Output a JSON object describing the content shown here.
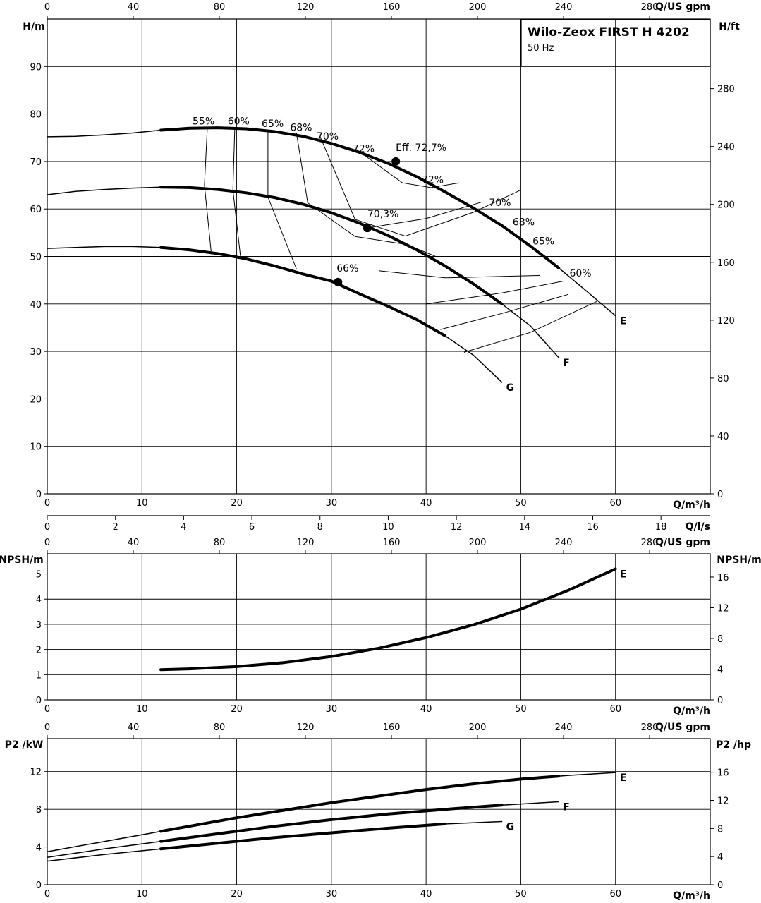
{
  "header": {
    "title": "Wilo-Zeox FIRST H 4202",
    "subtitle": "50 Hz"
  },
  "axes": {
    "q_m3h_label": "Q/m³/h",
    "q_ls_label": "Q/l/s",
    "q_usgpm_label": "Q/US gpm",
    "q_m3h_ticks": [
      "0",
      "10",
      "20",
      "30",
      "40",
      "50",
      "60"
    ],
    "q_ls_ticks": [
      "0",
      "2",
      "4",
      "6",
      "8",
      "10",
      "12",
      "14",
      "16",
      "18"
    ],
    "q_usgpm_ticks": [
      "0",
      "40",
      "80",
      "120",
      "160",
      "200",
      "240",
      "280"
    ]
  },
  "chart_data": [
    {
      "type": "line",
      "name": "head",
      "ylabel": "H/m",
      "y2label": "H/ft",
      "xlim": [
        0,
        70
      ],
      "ylim": [
        0,
        100
      ],
      "yticks": [
        0,
        10,
        20,
        30,
        40,
        50,
        60,
        70,
        80,
        90
      ],
      "y2ticks": [
        0,
        40,
        80,
        120,
        160,
        200,
        240,
        280
      ],
      "series": [
        {
          "name": "E",
          "x": [
            0,
            3,
            6,
            9,
            12,
            15,
            18,
            21,
            24,
            27,
            30,
            33,
            36,
            39,
            42,
            45,
            48,
            51,
            54,
            57,
            60
          ],
          "y": [
            75.2,
            75.3,
            75.6,
            76.0,
            76.6,
            77.0,
            77.1,
            76.9,
            76.3,
            75.3,
            73.8,
            71.9,
            69.6,
            66.8,
            63.6,
            60.2,
            56.5,
            52.2,
            47.6,
            42.6,
            37.5
          ]
        },
        {
          "name": "F",
          "x": [
            0,
            3,
            6,
            9,
            12,
            15,
            18,
            21,
            24,
            27,
            30,
            33,
            36,
            39,
            42,
            45,
            48,
            51,
            54
          ],
          "y": [
            63.0,
            63.7,
            64.1,
            64.4,
            64.6,
            64.5,
            64.1,
            63.4,
            62.4,
            61.0,
            59.2,
            57.0,
            54.4,
            51.4,
            48.0,
            44.2,
            40.0,
            35.4,
            28.7
          ]
        },
        {
          "name": "G",
          "x": [
            0,
            3,
            6,
            9,
            12,
            15,
            18,
            21,
            24,
            27,
            30,
            33,
            36,
            39,
            42,
            45,
            48
          ],
          "y": [
            51.7,
            51.9,
            52.1,
            52.1,
            51.9,
            51.4,
            50.6,
            49.5,
            48.0,
            46.3,
            44.8,
            42.1,
            39.5,
            36.7,
            33.3,
            29.2,
            23.5
          ]
        }
      ],
      "operating_points": [
        {
          "label": "Eff. 72,7%",
          "x": 36.8,
          "y": 70.0
        },
        {
          "label": "70,3%",
          "x": 33.8,
          "y": 56.0
        },
        {
          "label": "66%",
          "x": 30.7,
          "y": 44.6
        }
      ],
      "efficiency_labels": [
        "55%",
        "60%",
        "65%",
        "68%",
        "70%",
        "72%",
        "72%",
        "70%",
        "68%",
        "65%",
        "60%"
      ],
      "curve_labels": [
        "E",
        "F",
        "G"
      ]
    },
    {
      "type": "line",
      "name": "npsh",
      "ylabel": "NPSH/m",
      "y2label": "NPSH/m",
      "xlim": [
        0,
        70
      ],
      "ylim": [
        0,
        5.8
      ],
      "yticks": [
        0,
        1,
        2,
        3,
        4,
        5
      ],
      "y2ticks": [
        0,
        4,
        8,
        12,
        16
      ],
      "series": [
        {
          "name": "E",
          "x": [
            12,
            15,
            20,
            25,
            30,
            35,
            40,
            45,
            50,
            55,
            60
          ],
          "y": [
            1.2,
            1.23,
            1.32,
            1.48,
            1.72,
            2.05,
            2.47,
            2.98,
            3.6,
            4.35,
            5.2
          ]
        }
      ]
    },
    {
      "type": "line",
      "name": "power",
      "ylabel": "P2 /kW",
      "y2label": "P2 /hp",
      "xlim": [
        0,
        70
      ],
      "ylim": [
        0,
        15.5
      ],
      "yticks": [
        0,
        4,
        8,
        12
      ],
      "y2ticks": [
        0,
        4,
        8,
        12,
        16
      ],
      "series": [
        {
          "name": "E",
          "x": [
            0,
            5,
            10,
            15,
            20,
            25,
            30,
            35,
            40,
            45,
            50,
            55,
            60
          ],
          "y": [
            3.5,
            4.4,
            5.3,
            6.2,
            7.1,
            7.9,
            8.7,
            9.4,
            10.1,
            10.7,
            11.2,
            11.6,
            11.9
          ]
        },
        {
          "name": "F",
          "x": [
            0,
            6,
            12,
            18,
            24,
            30,
            36,
            42,
            48,
            54
          ],
          "y": [
            2.9,
            3.8,
            4.6,
            5.4,
            6.2,
            6.9,
            7.5,
            8.0,
            8.45,
            8.8
          ]
        },
        {
          "name": "G",
          "x": [
            0,
            6,
            12,
            18,
            24,
            30,
            36,
            42,
            48
          ],
          "y": [
            2.5,
            3.2,
            3.8,
            4.4,
            5.0,
            5.5,
            6.0,
            6.45,
            6.7
          ]
        }
      ]
    }
  ]
}
